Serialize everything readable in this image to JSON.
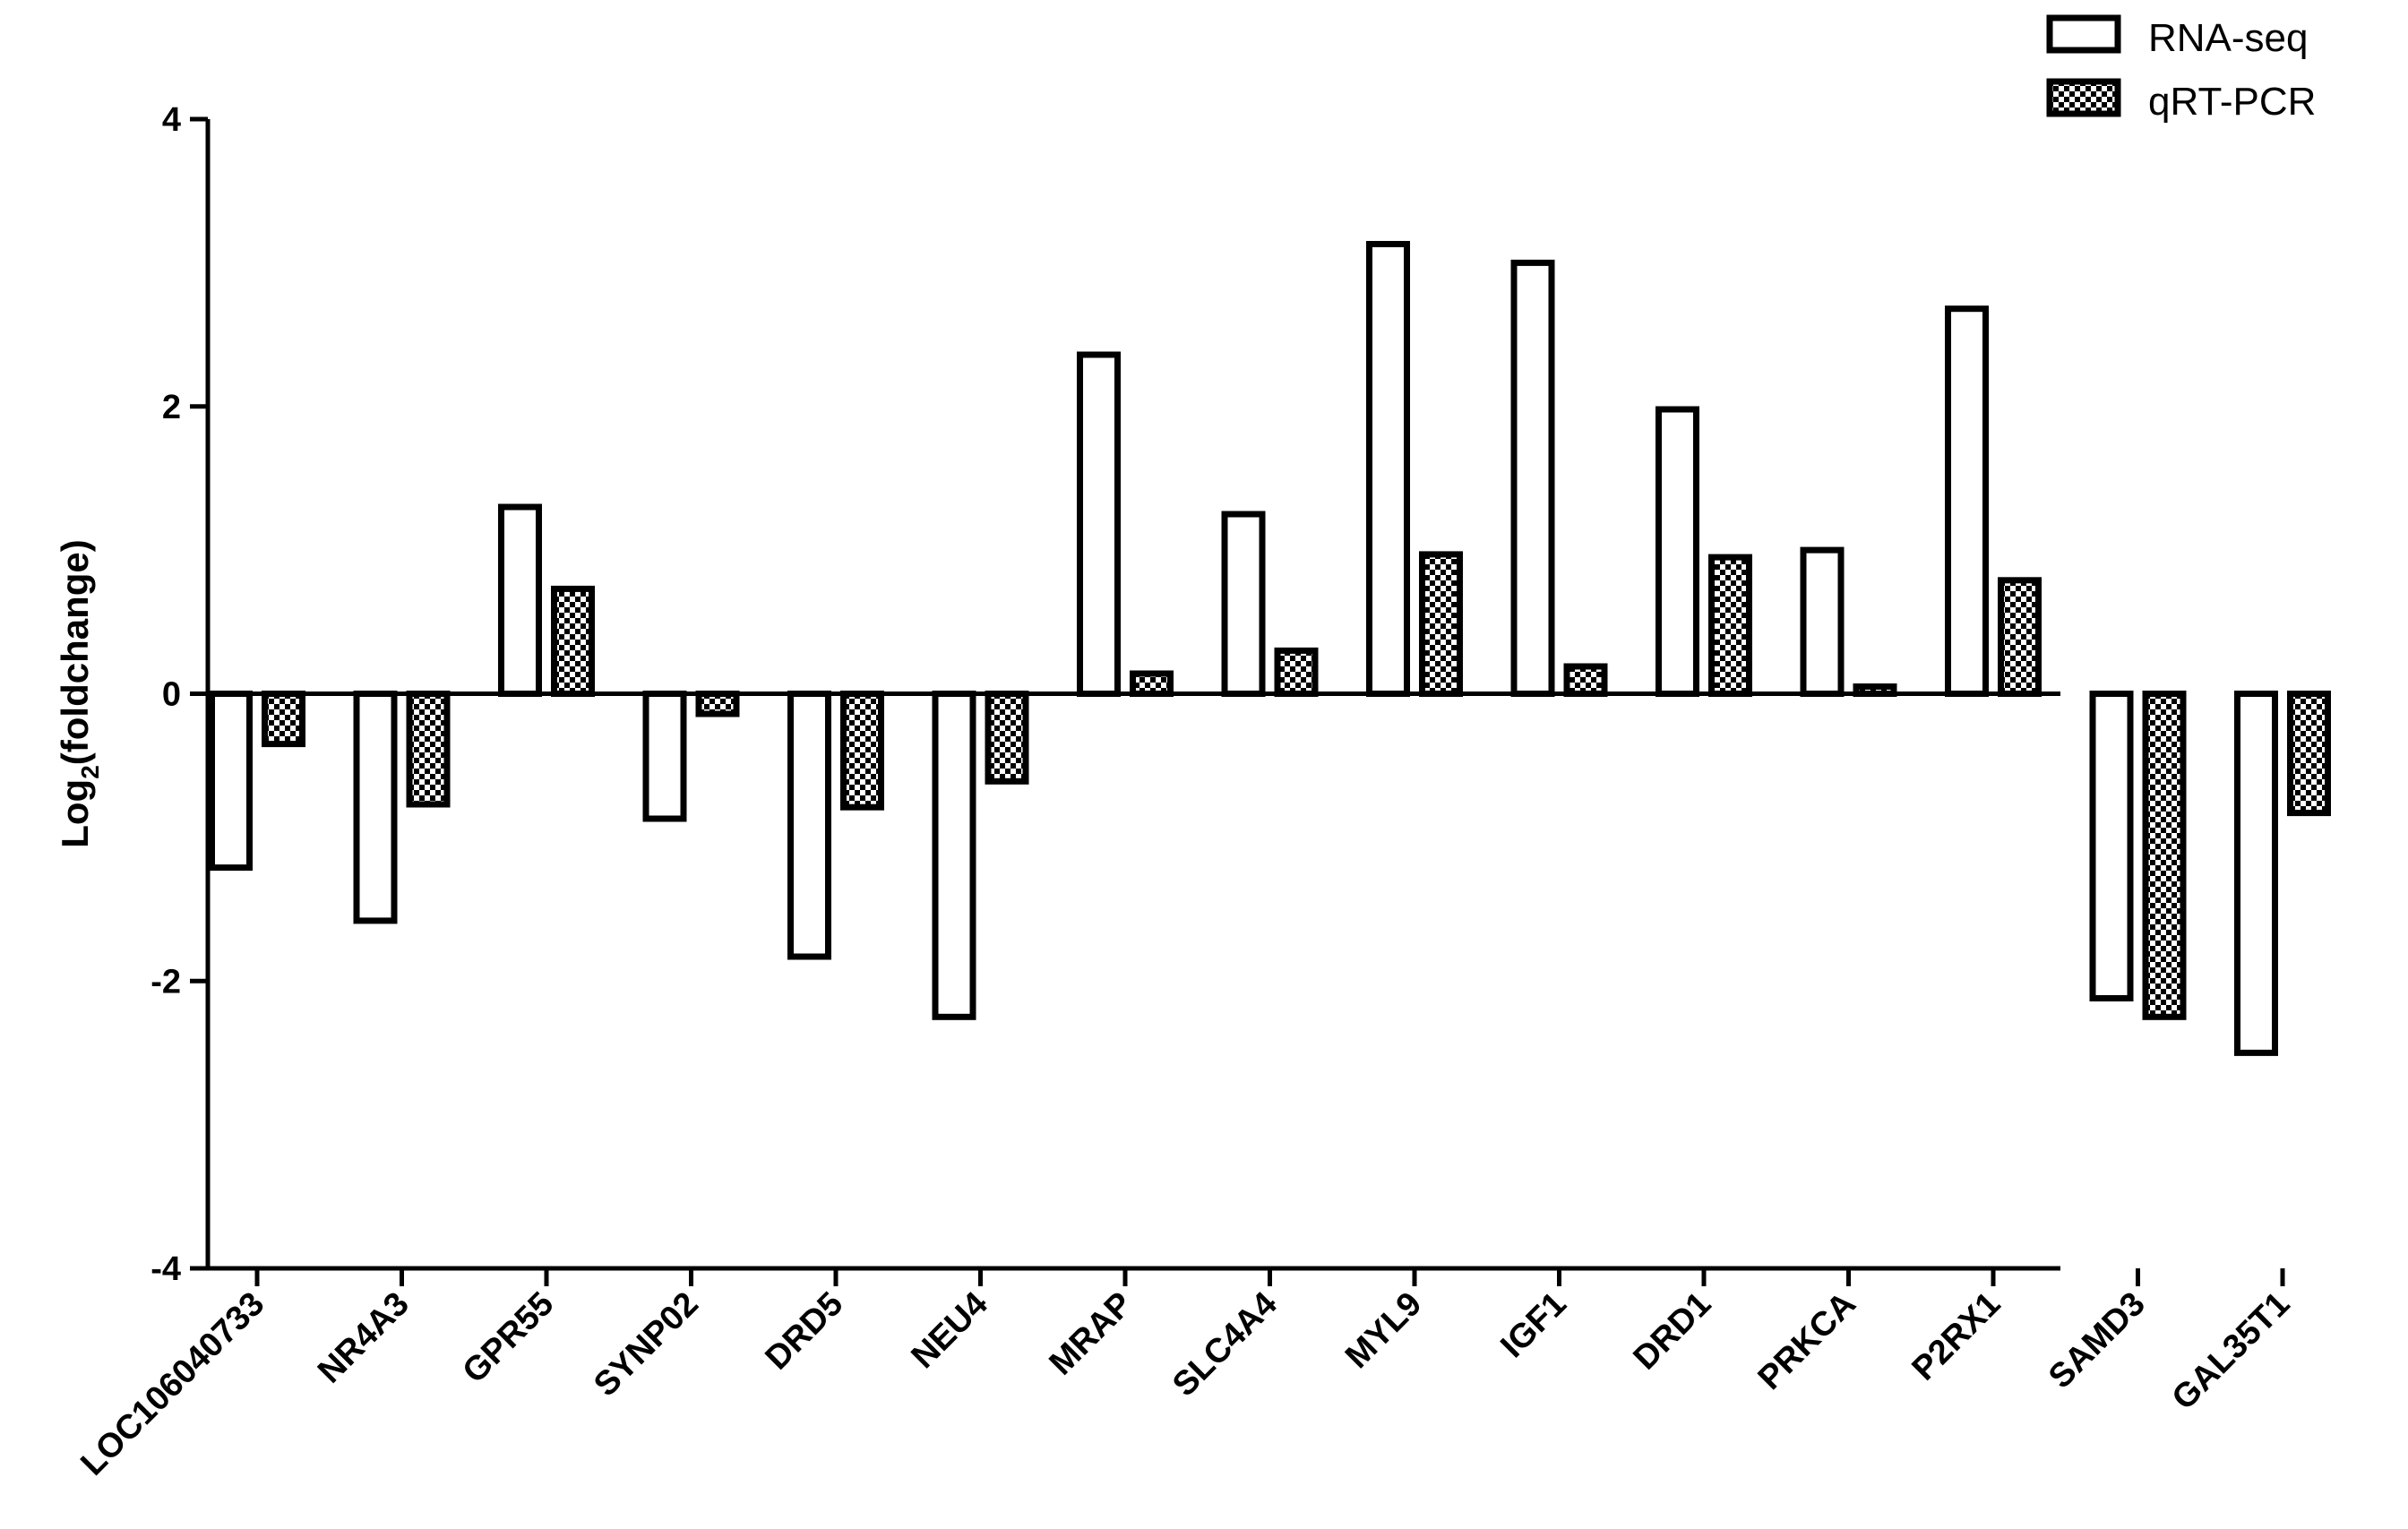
{
  "chart_data": {
    "type": "bar",
    "title": "",
    "xlabel": "",
    "ylabel": "Log₂(foldchange)",
    "ylabel_parts": [
      "Log",
      "2",
      "(foldchange)"
    ],
    "ylim": [
      -4,
      4
    ],
    "yticks": [
      4,
      2,
      0,
      -2,
      -4
    ],
    "ytick_labels": [
      "4",
      "2",
      "0",
      "-2",
      "-4"
    ],
    "grid": false,
    "legend_position": "top-right",
    "categories": [
      "LOC106040733",
      "NR4A3",
      "GPR55",
      "SYNP02",
      "DRD5",
      "NEU4",
      "MRAP",
      "SLC4A4",
      "MYL9",
      "IGF1",
      "DRD1",
      "PRKCA",
      "P2RX1",
      "SAMD3",
      "GAL35T1"
    ],
    "series": [
      {
        "name": "RNA-seq",
        "fill": "open",
        "values": [
          -1.21,
          -1.58,
          1.3,
          -0.87,
          -1.83,
          -2.25,
          2.36,
          1.25,
          3.13,
          3.0,
          1.98,
          1.0,
          2.68,
          -2.12,
          -2.5
        ]
      },
      {
        "name": "qRT-PCR",
        "fill": "checkered",
        "values": [
          -0.35,
          -0.77,
          0.73,
          -0.14,
          -0.79,
          -0.61,
          0.14,
          0.3,
          0.97,
          0.19,
          0.95,
          0.05,
          0.79,
          -2.25,
          -0.83
        ]
      }
    ]
  },
  "colors": {
    "bar_stroke": "#000000",
    "bar_fill_open": "#ffffff",
    "checker_dark": "#000000",
    "checker_light": "#ffffff",
    "axis": "#000000"
  }
}
